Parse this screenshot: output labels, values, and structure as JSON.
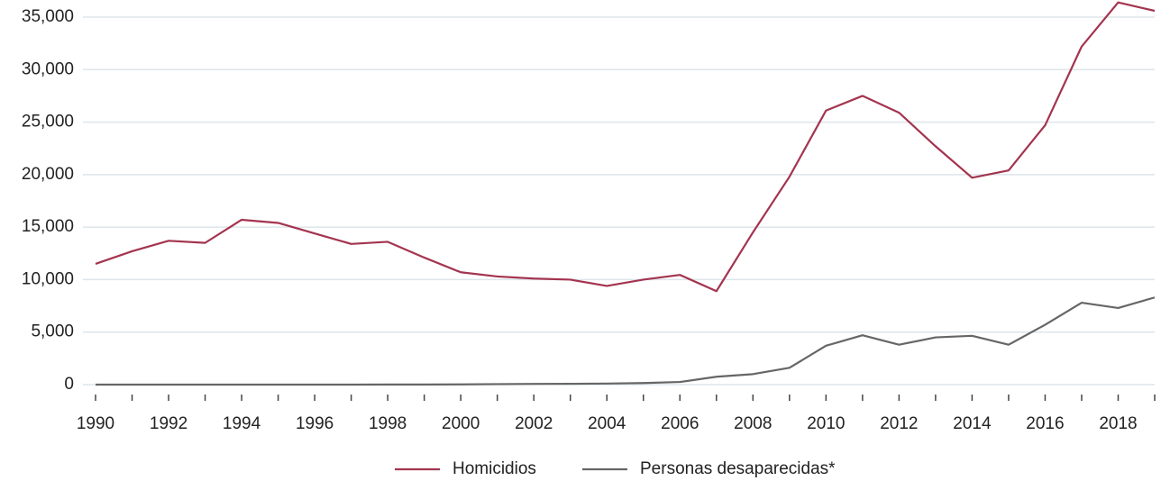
{
  "chart_data": {
    "type": "line",
    "x": [
      1990,
      1991,
      1992,
      1993,
      1994,
      1995,
      1996,
      1997,
      1998,
      1999,
      2000,
      2001,
      2002,
      2003,
      2004,
      2005,
      2006,
      2007,
      2008,
      2009,
      2010,
      2011,
      2012,
      2013,
      2014,
      2015,
      2016,
      2017,
      2018,
      2019
    ],
    "series": [
      {
        "name": "Homicidios",
        "color": "#a3344f",
        "values": [
          11500,
          12700,
          13700,
          13500,
          15700,
          15400,
          14400,
          13400,
          13600,
          12100,
          10700,
          10300,
          10100,
          10000,
          9400,
          10000,
          10450,
          8900,
          14500,
          19800,
          26100,
          27500,
          25900,
          22700,
          19700,
          20400,
          24700,
          32200,
          36400,
          35600
        ]
      },
      {
        "name": "Personas desaparecidas*",
        "color": "#666666",
        "values": [
          0,
          0,
          0,
          0,
          0,
          0,
          0,
          0,
          10,
          10,
          20,
          50,
          70,
          80,
          100,
          150,
          250,
          750,
          1000,
          1600,
          3700,
          4700,
          3800,
          4500,
          4650,
          3800,
          5700,
          7800,
          7300,
          8300
        ]
      }
    ],
    "xlim": [
      1990,
      2019
    ],
    "xticks": [
      1990,
      1992,
      1994,
      1996,
      1998,
      2000,
      2002,
      2004,
      2006,
      2008,
      2010,
      2012,
      2014,
      2016,
      2018
    ],
    "xminorticks": [
      1991,
      1993,
      1995,
      1997,
      1999,
      2001,
      2003,
      2005,
      2007,
      2009,
      2011,
      2013,
      2015,
      2017,
      2019
    ],
    "ylim": [
      0,
      35000
    ],
    "yticks": [
      0,
      {
        "value": 5000,
        "label": "5,000"
      },
      {
        "value": 10000,
        "label": "10,000"
      },
      {
        "value": 15000,
        "label": "15,000"
      },
      {
        "value": 20000,
        "label": "20,000"
      },
      {
        "value": 25000,
        "label": "25,000"
      },
      {
        "value": 30000,
        "label": "30,000"
      },
      {
        "value": 35000,
        "label": "35,000"
      }
    ],
    "grid": true,
    "legend": "bottom"
  }
}
